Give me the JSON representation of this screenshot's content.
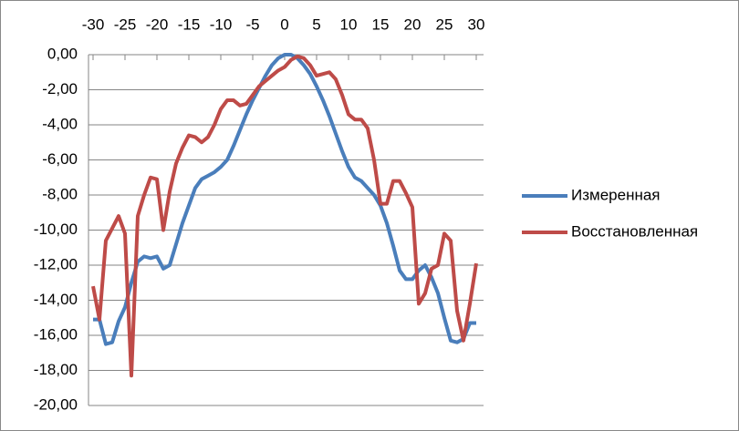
{
  "chart_data": {
    "type": "line",
    "x": [
      -30,
      -29,
      -28,
      -27,
      -26,
      -25,
      -24,
      -23,
      -22,
      -21,
      -20,
      -19,
      -18,
      -17,
      -16,
      -15,
      -14,
      -13,
      -12,
      -11,
      -10,
      -9,
      -8,
      -7,
      -6,
      -5,
      -4,
      -3,
      -2,
      -1,
      0,
      1,
      2,
      3,
      4,
      5,
      6,
      7,
      8,
      9,
      10,
      11,
      12,
      13,
      14,
      15,
      16,
      17,
      18,
      19,
      20,
      21,
      22,
      23,
      24,
      25,
      26,
      27,
      28,
      29,
      30
    ],
    "series": [
      {
        "name": "Измеренная",
        "color": "#4a7ebb",
        "values": [
          -15.1,
          -15.1,
          -16.5,
          -16.4,
          -15.2,
          -14.4,
          -13.0,
          -11.8,
          -11.5,
          -11.6,
          -11.5,
          -12.2,
          -12.0,
          -10.8,
          -9.6,
          -8.6,
          -7.6,
          -7.1,
          -6.9,
          -6.7,
          -6.4,
          -6.0,
          -5.2,
          -4.3,
          -3.4,
          -2.6,
          -1.9,
          -1.2,
          -0.6,
          -0.2,
          0,
          0,
          -0.2,
          -0.6,
          -1.1,
          -1.8,
          -2.6,
          -3.5,
          -4.5,
          -5.5,
          -6.4,
          -7.0,
          -7.2,
          -7.6,
          -8.0,
          -8.6,
          -9.6,
          -10.9,
          -12.3,
          -12.8,
          -12.8,
          -12.3,
          -12.0,
          -12.7,
          -13.6,
          -15.0,
          -16.3,
          -16.4,
          -16.2,
          -15.3,
          -15.3
        ]
      },
      {
        "name": "Восстановленная",
        "color": "#be4b48",
        "values": [
          -13.2,
          -15.1,
          -10.6,
          -9.9,
          -9.2,
          -10.2,
          -18.3,
          -9.2,
          -8.0,
          -7.0,
          -7.1,
          -10.0,
          -7.8,
          -6.2,
          -5.3,
          -4.6,
          -4.7,
          -5.0,
          -4.7,
          -4.0,
          -3.1,
          -2.6,
          -2.6,
          -2.9,
          -2.8,
          -2.3,
          -1.8,
          -1.5,
          -1.2,
          -0.9,
          -0.7,
          -0.3,
          -0.1,
          -0.2,
          -0.6,
          -1.2,
          -1.1,
          -1.0,
          -1.4,
          -2.3,
          -3.4,
          -3.7,
          -3.7,
          -4.2,
          -6.0,
          -8.5,
          -8.5,
          -7.2,
          -7.2,
          -7.9,
          -8.7,
          -14.2,
          -13.6,
          -12.2,
          -12.0,
          -10.2,
          -10.6,
          -14.6,
          -16.3,
          -14.2,
          -11.9
        ]
      }
    ],
    "xlim": [
      -30,
      30
    ],
    "xticks": [
      -30,
      -25,
      -20,
      -15,
      -10,
      -5,
      0,
      5,
      10,
      15,
      20,
      25,
      30
    ],
    "ylim": [
      -20,
      0
    ],
    "yticks": [
      {
        "value": 0,
        "label": "0,00"
      },
      {
        "value": -2,
        "label": "-2,00"
      },
      {
        "value": -4,
        "label": "-4,00"
      },
      {
        "value": -6,
        "label": "-6,00"
      },
      {
        "value": -8,
        "label": "-8,00"
      },
      {
        "value": -10,
        "label": "-10,00"
      },
      {
        "value": -12,
        "label": "-12,00"
      },
      {
        "value": -14,
        "label": "-14,00"
      },
      {
        "value": -16,
        "label": "-16,00"
      },
      {
        "value": -18,
        "label": "-18,00"
      },
      {
        "value": -20,
        "label": "-20,00"
      }
    ],
    "grid": true,
    "legend": "right"
  }
}
